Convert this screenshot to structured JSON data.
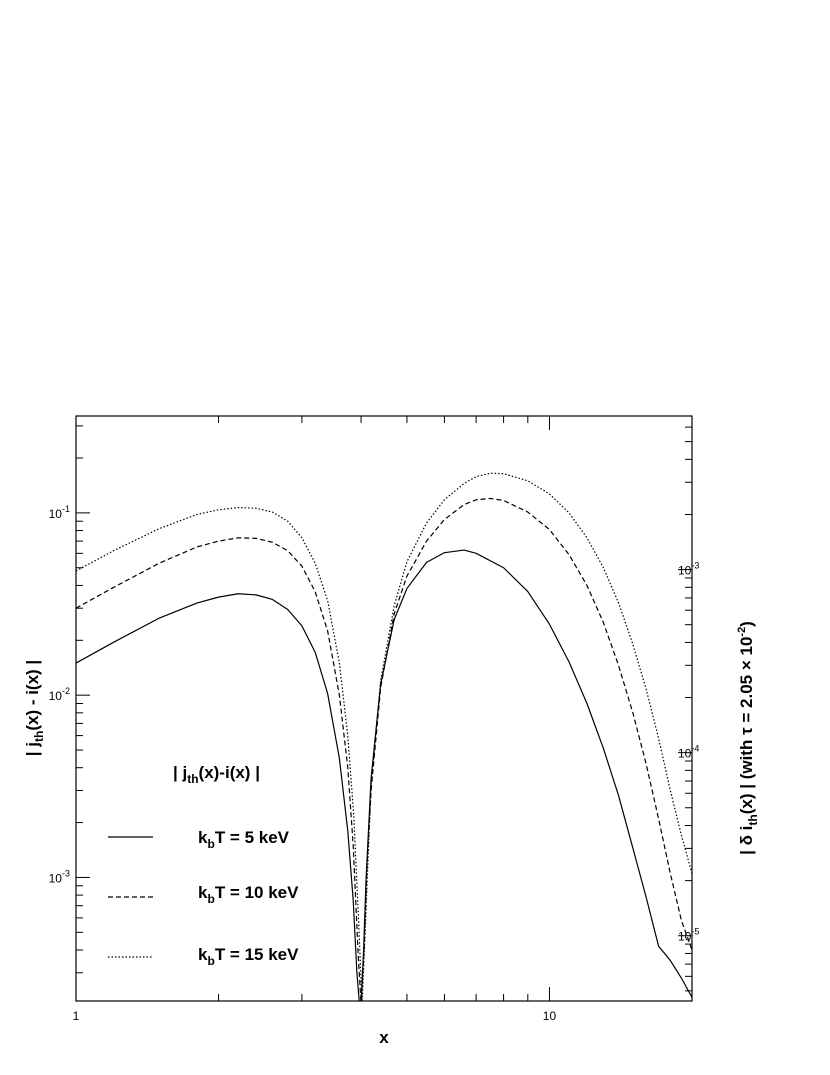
{
  "chart_data": {
    "type": "line",
    "x_scale": "log",
    "y_scale": "log",
    "xlim": [
      1,
      20
    ],
    "ylim": [
      0.00021,
      0.34
    ],
    "y2lim": [
      4.4e-06,
      0.0069
    ],
    "grid": false,
    "xlabel": "x",
    "ylabel": "| j_th(x) - i(x) |",
    "y2label": "| δ i_th(x) | (with τ = 2.05 × 10^-2)",
    "x_tick_labels": [
      {
        "value": 1,
        "text": "1"
      },
      {
        "value": 10,
        "text": "10"
      }
    ],
    "y_tick_labels": [
      {
        "value": 0.1,
        "mant": "10",
        "exp": "-1"
      },
      {
        "value": 0.01,
        "mant": "10",
        "exp": "-2"
      },
      {
        "value": 0.001,
        "mant": "10",
        "exp": "-3"
      }
    ],
    "y2_tick_labels": [
      {
        "value": 0.001,
        "mant": "10",
        "exp": "-3"
      },
      {
        "value": 0.0001,
        "mant": "10",
        "exp": "-4"
      },
      {
        "value": 1e-05,
        "mant": "10",
        "exp": "-5"
      }
    ],
    "legend": {
      "title": "| j_th(x)-i(x) |",
      "placement": "lower-left"
    },
    "series": [
      {
        "name": "k_bT =  5 keV",
        "style": "solid",
        "x": [
          1.0,
          1.2,
          1.5,
          1.8,
          2.0,
          2.2,
          2.4,
          2.6,
          2.8,
          3.0,
          3.2,
          3.4,
          3.6,
          3.75,
          3.85,
          3.92,
          3.97,
          4.0,
          4.05,
          4.1,
          4.2,
          4.4,
          4.7,
          5.0,
          5.5,
          6.0,
          6.6,
          7.0,
          8.0,
          9.0,
          10.0,
          11.0,
          12.0,
          13.0,
          14.0,
          15.0,
          16.0,
          17.0,
          18.0,
          19.0,
          20.0
        ],
        "values": [
          0.015,
          0.0195,
          0.0265,
          0.032,
          0.0345,
          0.036,
          0.0355,
          0.0335,
          0.0295,
          0.024,
          0.0172,
          0.0102,
          0.0045,
          0.0018,
          0.00075,
          0.0003,
          0.0002,
          0.0002,
          0.0004,
          0.001,
          0.0035,
          0.0115,
          0.026,
          0.0385,
          0.0535,
          0.0605,
          0.0625,
          0.06,
          0.05,
          0.037,
          0.0245,
          0.0152,
          0.009,
          0.0051,
          0.0028,
          0.00145,
          0.00078,
          0.00042,
          0.00035,
          0.00028,
          0.00022
        ]
      },
      {
        "name": "k_bT = 10 keV",
        "style": "dashed",
        "x": [
          1.0,
          1.2,
          1.5,
          1.8,
          2.0,
          2.2,
          2.4,
          2.6,
          2.8,
          3.0,
          3.2,
          3.4,
          3.6,
          3.75,
          3.85,
          3.94,
          4.0,
          4.06,
          4.12,
          4.2,
          4.4,
          4.7,
          5.0,
          5.5,
          6.0,
          6.6,
          7.0,
          7.5,
          8.0,
          9.0,
          10.0,
          11.0,
          12.0,
          13.0,
          14.0,
          15.0,
          16.0,
          17.0,
          18.0,
          19.0,
          20.0
        ],
        "values": [
          0.03,
          0.039,
          0.053,
          0.065,
          0.07,
          0.073,
          0.0725,
          0.069,
          0.062,
          0.051,
          0.037,
          0.0225,
          0.01,
          0.004,
          0.0015,
          0.0004,
          0.0002,
          0.0004,
          0.0012,
          0.003,
          0.011,
          0.028,
          0.045,
          0.07,
          0.092,
          0.111,
          0.118,
          0.12,
          0.117,
          0.101,
          0.081,
          0.059,
          0.04,
          0.025,
          0.0145,
          0.008,
          0.0042,
          0.0021,
          0.00105,
          0.00058,
          0.0004
        ]
      },
      {
        "name": "k_bT = 15 keV",
        "style": "dotted",
        "x": [
          1.0,
          1.2,
          1.5,
          1.8,
          2.0,
          2.2,
          2.4,
          2.6,
          2.8,
          3.0,
          3.2,
          3.4,
          3.6,
          3.75,
          3.86,
          3.95,
          4.02,
          4.08,
          4.14,
          4.2,
          4.4,
          4.7,
          5.0,
          5.5,
          6.0,
          6.6,
          7.0,
          7.5,
          8.0,
          9.0,
          10.0,
          11.0,
          12.0,
          13.0,
          14.0,
          15.0,
          16.0,
          17.0,
          18.0,
          19.0,
          20.0
        ],
        "values": [
          0.048,
          0.062,
          0.082,
          0.098,
          0.104,
          0.107,
          0.106,
          0.101,
          0.09,
          0.073,
          0.053,
          0.033,
          0.015,
          0.006,
          0.0022,
          0.0006,
          0.0002,
          0.0005,
          0.0013,
          0.0032,
          0.012,
          0.031,
          0.054,
          0.088,
          0.118,
          0.145,
          0.158,
          0.165,
          0.164,
          0.15,
          0.127,
          0.1,
          0.073,
          0.05,
          0.032,
          0.019,
          0.0108,
          0.0058,
          0.003,
          0.0017,
          0.00105
        ]
      }
    ]
  }
}
